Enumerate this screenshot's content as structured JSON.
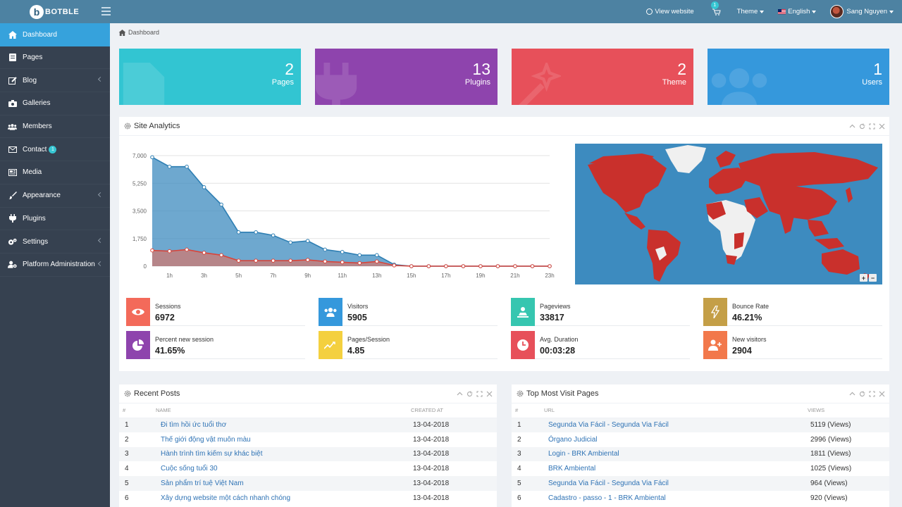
{
  "brand": {
    "badge": "b",
    "name": "BOTBLE"
  },
  "topnav": {
    "view_website": "View website",
    "cart_count": "1",
    "theme": "Theme",
    "language": "English",
    "user": "Sang Nguyen"
  },
  "sidebar": {
    "items": [
      {
        "label": "Dashboard",
        "icon": "home-icon"
      },
      {
        "label": "Pages",
        "icon": "page-icon"
      },
      {
        "label": "Blog",
        "icon": "edit-icon"
      },
      {
        "label": "Galleries",
        "icon": "camera-icon"
      },
      {
        "label": "Members",
        "icon": "users-icon"
      },
      {
        "label": "Contact",
        "icon": "envelope-icon",
        "badge": "1"
      },
      {
        "label": "Media",
        "icon": "media-icon"
      },
      {
        "label": "Appearance",
        "icon": "brush-icon"
      },
      {
        "label": "Plugins",
        "icon": "plug-icon"
      },
      {
        "label": "Settings",
        "icon": "cogs-icon"
      },
      {
        "label": "Platform Administration",
        "icon": "user-cog-icon"
      }
    ]
  },
  "breadcrumb": {
    "label": "Dashboard"
  },
  "stats": [
    {
      "value": "2",
      "label": "Pages",
      "color": "#32c5d2"
    },
    {
      "value": "13",
      "label": "Plugins",
      "color": "#8e44ad"
    },
    {
      "value": "2",
      "label": "Theme",
      "color": "#e7505a"
    },
    {
      "value": "1",
      "label": "Users",
      "color": "#3598dc"
    }
  ],
  "analytics": {
    "title": "Site Analytics",
    "metrics": [
      {
        "label": "Sessions",
        "value": "6972",
        "color": "#f36a5a",
        "icon": "eye-icon"
      },
      {
        "label": "Visitors",
        "value": "5905",
        "color": "#3598dc",
        "icon": "users-icon"
      },
      {
        "label": "Pageviews",
        "value": "33817",
        "color": "#36c6b0",
        "icon": "traffic-icon"
      },
      {
        "label": "Bounce Rate",
        "value": "46.21%",
        "color": "#c49f47",
        "icon": "bolt-icon"
      },
      {
        "label": "Percent new session",
        "value": "41.65%",
        "color": "#8e44ad",
        "icon": "pie-icon"
      },
      {
        "label": "Pages/Session",
        "value": "4.85",
        "color": "#f4d03f",
        "icon": "chart-line-icon"
      },
      {
        "label": "Avg. Duration",
        "value": "00:03:28",
        "color": "#e7505a",
        "icon": "clock-icon"
      },
      {
        "label": "New visitors",
        "value": "2904",
        "color": "#f2784b",
        "icon": "user-plus-icon"
      }
    ],
    "map_zoom_in": "+",
    "map_zoom_out": "−"
  },
  "chart_data": {
    "type": "area",
    "x": [
      "0h",
      "1h",
      "2h",
      "3h",
      "4h",
      "5h",
      "6h",
      "7h",
      "8h",
      "9h",
      "10h",
      "11h",
      "12h",
      "13h",
      "14h",
      "15h",
      "16h",
      "17h",
      "18h",
      "19h",
      "20h",
      "21h",
      "22h",
      "23h"
    ],
    "x_tick_labels": [
      "1h",
      "3h",
      "5h",
      "7h",
      "9h",
      "11h",
      "13h",
      "15h",
      "17h",
      "19h",
      "21h",
      "23h"
    ],
    "y_tick_labels": [
      "7,000",
      "5,250",
      "3,500",
      "1,750",
      "0"
    ],
    "ylim": [
      0,
      7000
    ],
    "series": [
      {
        "values": [
          6900,
          6300,
          6300,
          5000,
          3900,
          2150,
          2150,
          1950,
          1500,
          1600,
          1050,
          900,
          700,
          700,
          100,
          0,
          0,
          0,
          0,
          0,
          0,
          0,
          0,
          0
        ],
        "color": "#3d8bbf"
      },
      {
        "values": [
          1000,
          950,
          1050,
          850,
          700,
          350,
          350,
          350,
          350,
          400,
          300,
          250,
          200,
          300,
          50,
          0,
          0,
          0,
          0,
          0,
          0,
          0,
          0,
          0
        ],
        "color": "#e66e5a"
      }
    ],
    "grid": true
  },
  "recent_posts": {
    "title": "Recent Posts",
    "columns": [
      "#",
      "NAME",
      "CREATED AT"
    ],
    "rows": [
      [
        "1",
        "Đi tìm hồi ức tuổi thơ",
        "13-04-2018"
      ],
      [
        "2",
        "Thế giới động vật muôn màu",
        "13-04-2018"
      ],
      [
        "3",
        "Hành trình tìm kiếm sự khác biệt",
        "13-04-2018"
      ],
      [
        "4",
        "Cuộc sống tuổi 30",
        "13-04-2018"
      ],
      [
        "5",
        "Sản phẩm trí tuệ Việt Nam",
        "13-04-2018"
      ],
      [
        "6",
        "Xây dựng website một cách nhanh chóng",
        "13-04-2018"
      ]
    ]
  },
  "top_pages": {
    "title": "Top Most Visit Pages",
    "columns": [
      "#",
      "URL",
      "VIEWS"
    ],
    "rows": [
      [
        "1",
        "Segunda Via Fácil - Segunda Via Fácil",
        "5119 (Views)"
      ],
      [
        "2",
        "Órgano Judicial",
        "2996 (Views)"
      ],
      [
        "3",
        "Login - BRK Ambiental",
        "1811 (Views)"
      ],
      [
        "4",
        "BRK Ambiental",
        "1025 (Views)"
      ],
      [
        "5",
        "Segunda Via Fácil - Segunda Via Fácil",
        "964 (Views)"
      ],
      [
        "6",
        "Cadastro - passo - 1 - BRK Ambiental",
        "920 (Views)"
      ]
    ]
  }
}
